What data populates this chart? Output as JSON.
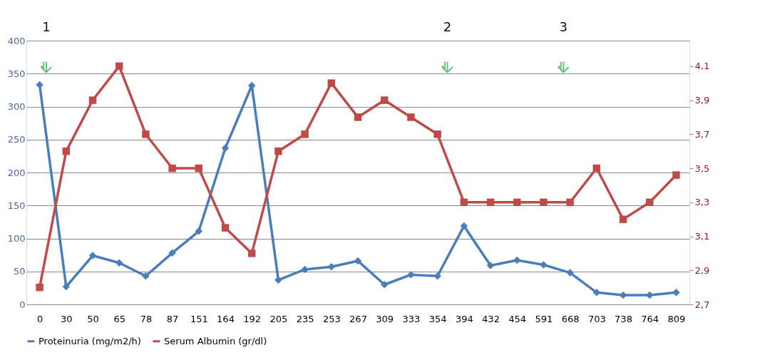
{
  "chart_data": {
    "type": "line",
    "categories": [
      "0",
      "30",
      "50",
      "65",
      "78",
      "87",
      "151",
      "164",
      "192",
      "205",
      "235",
      "253",
      "267",
      "309",
      "333",
      "354",
      "394",
      "432",
      "454",
      "591",
      "668",
      "703",
      "738",
      "764",
      "809"
    ],
    "series": [
      {
        "name": "Proteinuria (mg/m2/h)",
        "color": "#4a7ebb",
        "marker": "diamond",
        "values": [
          333,
          27,
          74,
          63,
          43,
          78,
          111,
          237,
          332,
          37,
          53,
          57,
          66,
          30,
          45,
          43,
          119,
          59,
          67,
          60,
          48,
          18,
          14,
          14,
          18
        ]
      },
      {
        "name": "Serum Albumin (gr/dl)",
        "color": "#be4b48",
        "marker": "square",
        "axis": "y2",
        "values": [
          2.8,
          3.6,
          3.9,
          4.1,
          3.7,
          3.5,
          3.5,
          3.15,
          3.0,
          3.6,
          3.7,
          4.0,
          3.8,
          3.9,
          3.8,
          3.7,
          3.3,
          3.3,
          3.3,
          3.3,
          3.3,
          3.5,
          3.2,
          3.3,
          3.46
        ]
      }
    ],
    "ylim": [
      0,
      400
    ],
    "yticks": [
      0,
      50,
      100,
      150,
      200,
      250,
      300,
      350,
      400
    ],
    "y2lim": [
      2.7,
      4.25
    ],
    "y2ticks": [
      {
        "value": 2.7,
        "label": "2,7"
      },
      {
        "value": 2.9,
        "label": "2,9"
      },
      {
        "value": 3.1,
        "label": "3,1"
      },
      {
        "value": 3.3,
        "label": "3,3"
      },
      {
        "value": 3.5,
        "label": "3,5"
      },
      {
        "value": 3.7,
        "label": "3,7"
      },
      {
        "value": 3.9,
        "label": "3,9"
      },
      {
        "value": 4.1,
        "label": "4,1"
      }
    ],
    "grid": "y",
    "legend": "bottom",
    "annotations": [
      "1",
      "2",
      "3"
    ]
  }
}
